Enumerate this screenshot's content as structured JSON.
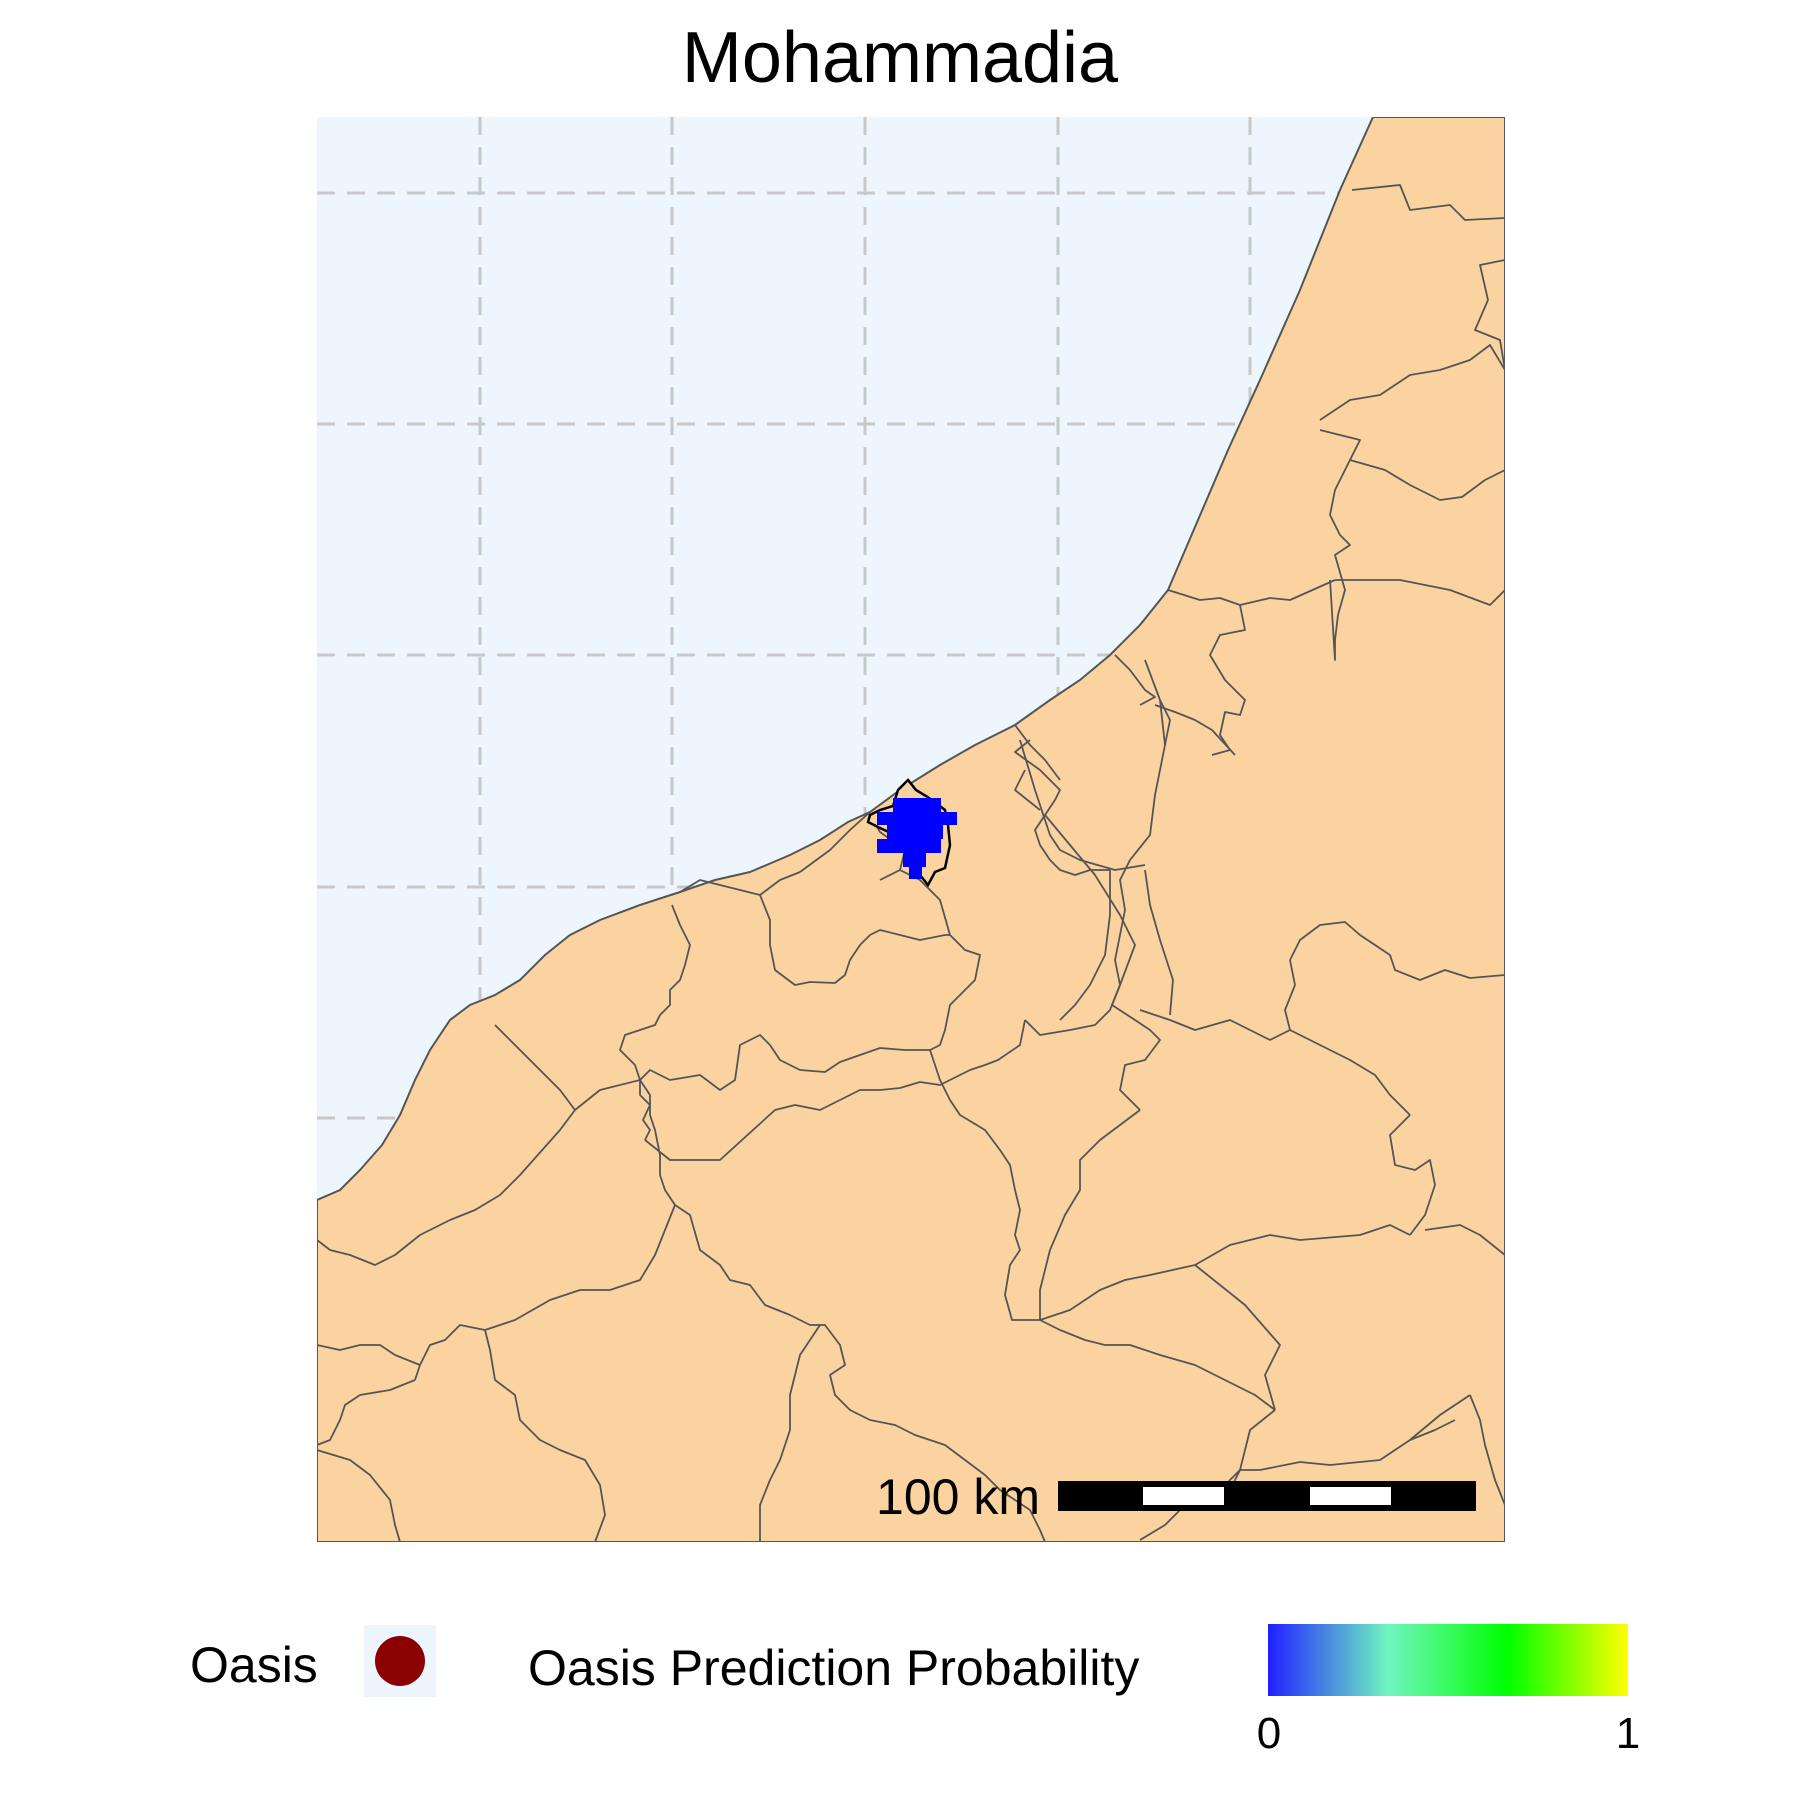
{
  "title": "Mohammadia",
  "map": {
    "colors": {
      "sea": "#edf6fd",
      "land": "#fbd3a0",
      "boundary": "#555555",
      "grid": "#c8c8c8",
      "prediction": "#0000ff",
      "highlight_outline": "#000000"
    },
    "scale_bar": {
      "label": "100 km",
      "segments": 5
    }
  },
  "legend": {
    "oasis": {
      "label": "Oasis",
      "color": "#8b0000"
    },
    "probability": {
      "label": "Oasis Prediction Probability",
      "min_label": "0",
      "max_label": "1",
      "gradient_colors": [
        "#2020ff",
        "#70f5c0",
        "#00ff00",
        "#ffff00"
      ]
    }
  }
}
